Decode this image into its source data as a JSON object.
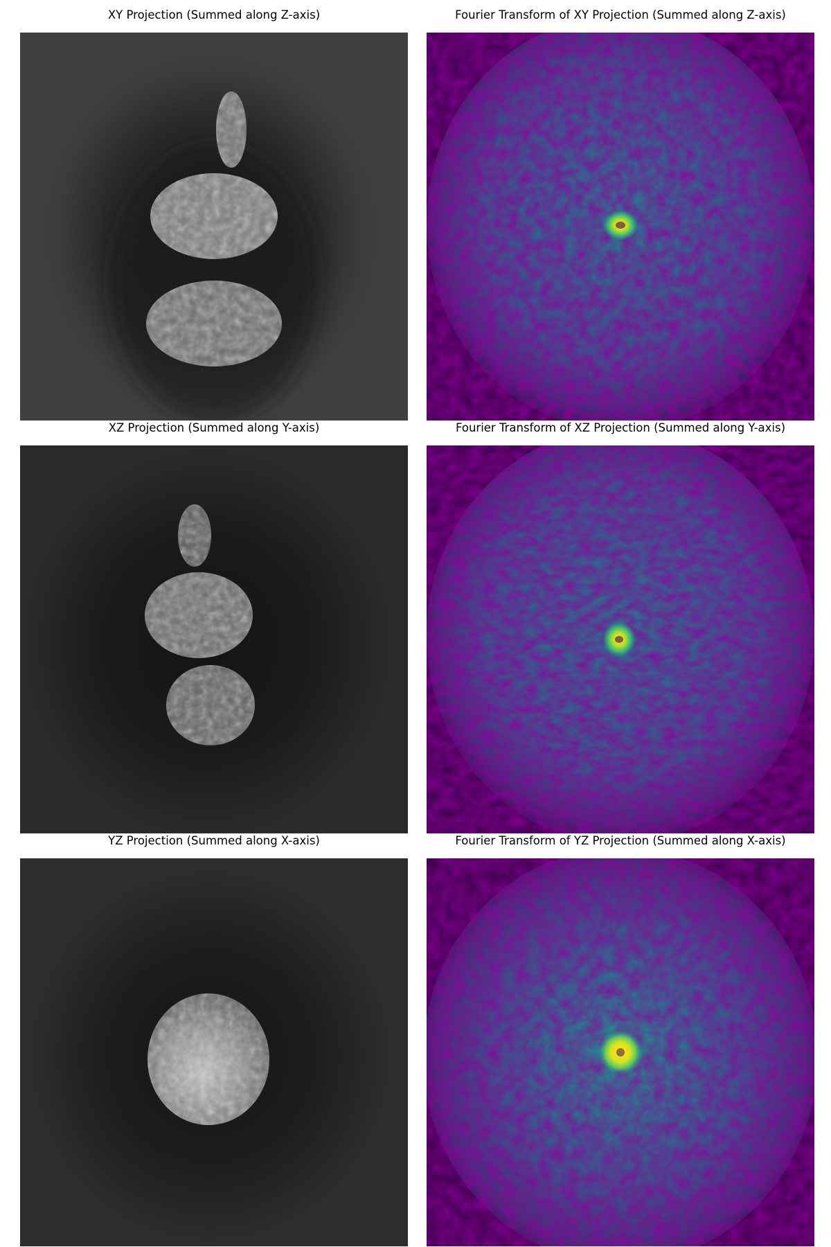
{
  "panels": [
    {
      "title": "XY Projection (Summed along Z-axis)",
      "kind": "projection",
      "colormap": "gray",
      "background": "#404040"
    },
    {
      "title": "Fourier Transform of XY Projection (Summed along Z-axis)",
      "kind": "fourier",
      "colormap": "viridis",
      "background": "#440154"
    },
    {
      "title": "XZ Projection (Summed along Y-axis)",
      "kind": "projection",
      "colormap": "gray",
      "background": "#2a2a2a"
    },
    {
      "title": "Fourier Transform of XZ Projection (Summed along Y-axis)",
      "kind": "fourier",
      "colormap": "viridis",
      "background": "#440154"
    },
    {
      "title": "YZ Projection (Summed along X-axis)",
      "kind": "projection",
      "colormap": "gray",
      "background": "#2d2d2d"
    },
    {
      "title": "Fourier Transform of YZ Projection (Summed along X-axis)",
      "kind": "fourier",
      "colormap": "viridis",
      "background": "#440154"
    }
  ]
}
